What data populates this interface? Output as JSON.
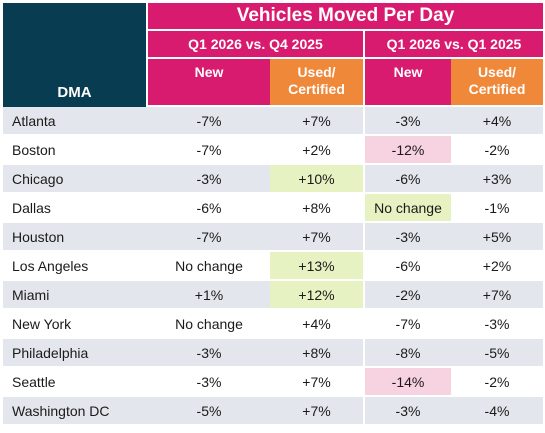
{
  "table": {
    "title": "Vehicles Moved Per Day",
    "dma_label": "DMA",
    "periods": [
      "Q1 2026 vs. Q4 2025",
      "Q1 2026 vs. Q1 2025"
    ],
    "sub_new": "New",
    "sub_used_line1": "Used/",
    "sub_used_line2": "Certified",
    "colors": {
      "header_dark": "#083c50",
      "header_pink": "#d81b6e",
      "header_orange": "#f0883a",
      "highlight_green": "#e6f2c2",
      "highlight_pink": "#f7d2e0",
      "row_alt": "#e3e6ec"
    },
    "rows": [
      {
        "city": "Atlanta",
        "values": [
          "-7%",
          "+7%",
          "-3%",
          "+4%"
        ]
      },
      {
        "city": "Boston",
        "values": [
          "-7%",
          "+2%",
          "-12%",
          "-2%"
        ]
      },
      {
        "city": "Chicago",
        "values": [
          "-3%",
          "+10%",
          "-6%",
          "+3%"
        ]
      },
      {
        "city": "Dallas",
        "values": [
          "-6%",
          "+8%",
          "No change",
          "-1%"
        ]
      },
      {
        "city": "Houston",
        "values": [
          "-7%",
          "+7%",
          "-3%",
          "+5%"
        ]
      },
      {
        "city": "Los Angeles",
        "values": [
          "No change",
          "+13%",
          "-6%",
          "+2%"
        ]
      },
      {
        "city": "Miami",
        "values": [
          "+1%",
          "+12%",
          "-2%",
          "+7%"
        ]
      },
      {
        "city": "New York",
        "values": [
          "No change",
          "+4%",
          "-7%",
          "-3%"
        ]
      },
      {
        "city": "Philadelphia",
        "values": [
          "-3%",
          "+8%",
          "-8%",
          "-5%"
        ]
      },
      {
        "city": "Seattle",
        "values": [
          "-3%",
          "+7%",
          "-14%",
          "-2%"
        ]
      },
      {
        "city": "Washington DC",
        "values": [
          "-5%",
          "+7%",
          "-3%",
          "-4%"
        ]
      }
    ]
  }
}
